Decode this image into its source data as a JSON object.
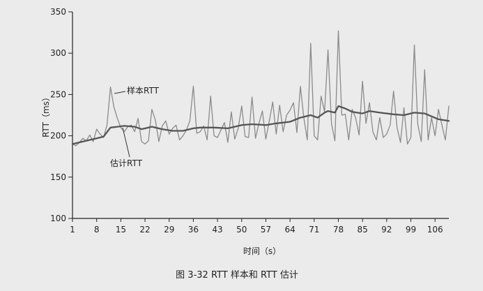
{
  "chart_data": {
    "type": "line",
    "title": "",
    "xlabel": "时间（s）",
    "ylabel": "RTT（ms）",
    "xlim": [
      1,
      110
    ],
    "ylim": [
      100,
      350
    ],
    "x_ticks": [
      1,
      8,
      15,
      22,
      29,
      36,
      43,
      50,
      57,
      64,
      71,
      78,
      85,
      92,
      99,
      106
    ],
    "y_ticks": [
      100,
      150,
      200,
      250,
      300,
      350
    ],
    "annotations": [
      "样本RTT",
      "估计RTT"
    ],
    "caption": "图 3-32   RTT 样本和 RTT 估计",
    "series": [
      {
        "name": "样本RTT",
        "color": "#8a8a8a",
        "values": [
          [
            1,
            190
          ],
          [
            2,
            188
          ],
          [
            3,
            192
          ],
          [
            4,
            197
          ],
          [
            5,
            194
          ],
          [
            6,
            201
          ],
          [
            7,
            193
          ],
          [
            8,
            208
          ],
          [
            9,
            202
          ],
          [
            10,
            198
          ],
          [
            11,
            213
          ],
          [
            12,
            259
          ],
          [
            13,
            235
          ],
          [
            14,
            221
          ],
          [
            15,
            210
          ],
          [
            16,
            205
          ],
          [
            17,
            211
          ],
          [
            18,
            213
          ],
          [
            19,
            205
          ],
          [
            20,
            221
          ],
          [
            21,
            193
          ],
          [
            22,
            190
          ],
          [
            23,
            194
          ],
          [
            24,
            232
          ],
          [
            25,
            219
          ],
          [
            26,
            193
          ],
          [
            27,
            212
          ],
          [
            28,
            218
          ],
          [
            29,
            202
          ],
          [
            30,
            209
          ],
          [
            31,
            213
          ],
          [
            32,
            195
          ],
          [
            33,
            200
          ],
          [
            34,
            207
          ],
          [
            35,
            218
          ],
          [
            36,
            260
          ],
          [
            37,
            203
          ],
          [
            38,
            205
          ],
          [
            39,
            212
          ],
          [
            40,
            195
          ],
          [
            41,
            248
          ],
          [
            42,
            200
          ],
          [
            43,
            198
          ],
          [
            44,
            207
          ],
          [
            45,
            216
          ],
          [
            46,
            192
          ],
          [
            47,
            229
          ],
          [
            48,
            196
          ],
          [
            49,
            209
          ],
          [
            50,
            236
          ],
          [
            51,
            199
          ],
          [
            52,
            198
          ],
          [
            53,
            247
          ],
          [
            54,
            197
          ],
          [
            55,
            215
          ],
          [
            56,
            230
          ],
          [
            57,
            196
          ],
          [
            58,
            218
          ],
          [
            59,
            241
          ],
          [
            60,
            202
          ],
          [
            61,
            237
          ],
          [
            62,
            205
          ],
          [
            63,
            225
          ],
          [
            64,
            231
          ],
          [
            65,
            240
          ],
          [
            66,
            204
          ],
          [
            67,
            260
          ],
          [
            68,
            222
          ],
          [
            69,
            195
          ],
          [
            70,
            312
          ],
          [
            71,
            200
          ],
          [
            72,
            195
          ],
          [
            73,
            248
          ],
          [
            74,
            229
          ],
          [
            75,
            304
          ],
          [
            76,
            215
          ],
          [
            77,
            194
          ],
          [
            78,
            327
          ],
          [
            79,
            225
          ],
          [
            80,
            226
          ],
          [
            81,
            195
          ],
          [
            82,
            232
          ],
          [
            83,
            222
          ],
          [
            84,
            201
          ],
          [
            85,
            266
          ],
          [
            86,
            215
          ],
          [
            87,
            240
          ],
          [
            88,
            205
          ],
          [
            89,
            195
          ],
          [
            90,
            222
          ],
          [
            91,
            198
          ],
          [
            92,
            202
          ],
          [
            93,
            213
          ],
          [
            94,
            254
          ],
          [
            95,
            210
          ],
          [
            96,
            192
          ],
          [
            97,
            234
          ],
          [
            98,
            190
          ],
          [
            99,
            198
          ],
          [
            100,
            310
          ],
          [
            101,
            214
          ],
          [
            102,
            193
          ],
          [
            103,
            280
          ],
          [
            104,
            195
          ],
          [
            105,
            222
          ],
          [
            106,
            200
          ],
          [
            107,
            232
          ],
          [
            108,
            213
          ],
          [
            109,
            195
          ],
          [
            110,
            236
          ]
        ]
      },
      {
        "name": "估计RTT",
        "color": "#555555",
        "values": [
          [
            1,
            190
          ],
          [
            4,
            193
          ],
          [
            8,
            197
          ],
          [
            10,
            199
          ],
          [
            12,
            210
          ],
          [
            14,
            211
          ],
          [
            16,
            212
          ],
          [
            19,
            211
          ],
          [
            21,
            208
          ],
          [
            24,
            211
          ],
          [
            27,
            208
          ],
          [
            30,
            206
          ],
          [
            33,
            206
          ],
          [
            36,
            209
          ],
          [
            38,
            210
          ],
          [
            42,
            210
          ],
          [
            46,
            209
          ],
          [
            50,
            213
          ],
          [
            53,
            214
          ],
          [
            57,
            213
          ],
          [
            60,
            215
          ],
          [
            64,
            217
          ],
          [
            67,
            222
          ],
          [
            70,
            225
          ],
          [
            72,
            222
          ],
          [
            74,
            228
          ],
          [
            75,
            230
          ],
          [
            77,
            228
          ],
          [
            78,
            236
          ],
          [
            80,
            233
          ],
          [
            82,
            229
          ],
          [
            85,
            227
          ],
          [
            87,
            230
          ],
          [
            90,
            228
          ],
          [
            94,
            226
          ],
          [
            97,
            225
          ],
          [
            100,
            228
          ],
          [
            103,
            227
          ],
          [
            107,
            220
          ],
          [
            110,
            218
          ]
        ]
      }
    ]
  }
}
